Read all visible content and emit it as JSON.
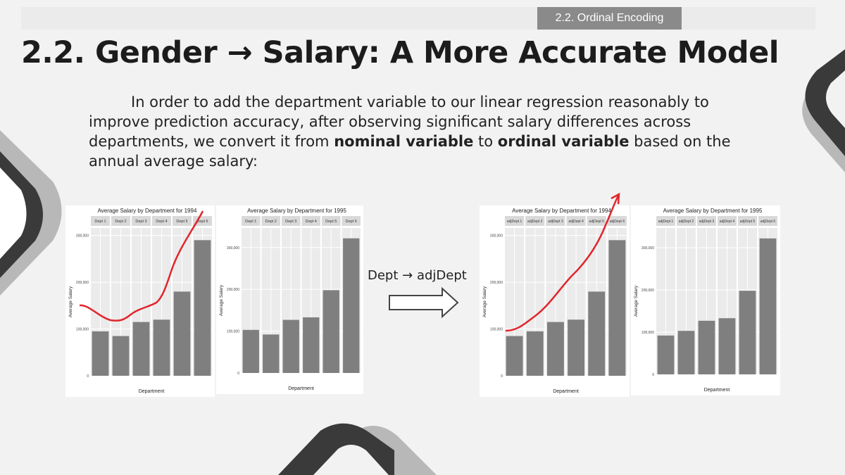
{
  "header": {
    "badge": "2.2. Ordinal Encoding"
  },
  "title": "2.2. Gender → Salary: A More Accurate Model",
  "paragraph": {
    "t1": "In order to add the department variable to our linear regression reasonably to improve prediction accuracy, after observing significant salary differences across departments, we convert it from ",
    "b1": "nominal variable",
    "t2": " to ",
    "b2": "ordinal variable",
    "t3": " based on the annual average salary:"
  },
  "arrow_label": "Dept → adjDept",
  "colors": {
    "bar": "#7f7f7f",
    "panel_strip": "#d9d9d9",
    "panel_bg": "#ebebeb",
    "annotation": "#e0262c",
    "deco_dark": "#3a3a3a",
    "deco_light": "#b8b8b8"
  },
  "chart_data": [
    {
      "type": "bar",
      "title": "Average Salary by Department for 1994",
      "xlabel": "Department",
      "ylabel": "Average Salary",
      "categories": [
        "Dept 1",
        "Dept 2",
        "Dept 3",
        "Dept 4",
        "Dept 5",
        "Dept 6"
      ],
      "values": [
        95000,
        85000,
        115000,
        120000,
        180000,
        290000
      ],
      "ylim": [
        0,
        310000
      ],
      "yticks": [
        0,
        100000,
        200000,
        300000
      ],
      "ytick_labels": [
        "0",
        "100,000",
        "200,000",
        "300,000"
      ],
      "grid": true
    },
    {
      "type": "bar",
      "title": "Average Salary by Department for 1995",
      "xlabel": "Department",
      "ylabel": "Average Salary",
      "categories": [
        "Dept 1",
        "Dept 2",
        "Dept 3",
        "Dept 4",
        "Dept 5",
        "Dept 6"
      ],
      "values": [
        103000,
        92000,
        127000,
        133000,
        198000,
        322000
      ],
      "ylim": [
        0,
        340000
      ],
      "yticks": [
        0,
        100000,
        200000,
        300000
      ],
      "ytick_labels": [
        "0",
        "100,000",
        "200,000",
        "300,000"
      ],
      "grid": true
    },
    {
      "type": "bar",
      "title": "Average Salary by Department for 1994",
      "xlabel": "Department",
      "ylabel": "Average Salary",
      "categories": [
        "adjDept 1",
        "adjDept 2",
        "adjDept 3",
        "adjDept 4",
        "adjDept 5",
        "adjDept 6"
      ],
      "values": [
        85000,
        95000,
        115000,
        120000,
        180000,
        290000
      ],
      "ylim": [
        0,
        310000
      ],
      "yticks": [
        0,
        100000,
        200000,
        300000
      ],
      "ytick_labels": [
        "0",
        "100,000",
        "200,000",
        "300,000"
      ],
      "grid": true
    },
    {
      "type": "bar",
      "title": "Average Salary by Department for 1995",
      "xlabel": "Department",
      "ylabel": "Average Salary",
      "categories": [
        "adjDept 1",
        "adjDept 2",
        "adjDept 3",
        "adjDept 4",
        "adjDept 5",
        "adjDept 6"
      ],
      "values": [
        92000,
        103000,
        127000,
        133000,
        198000,
        322000
      ],
      "ylim": [
        0,
        340000
      ],
      "yticks": [
        0,
        100000,
        200000,
        300000
      ],
      "ytick_labels": [
        "0",
        "100,000",
        "200,000",
        "300,000"
      ],
      "grid": true
    }
  ]
}
